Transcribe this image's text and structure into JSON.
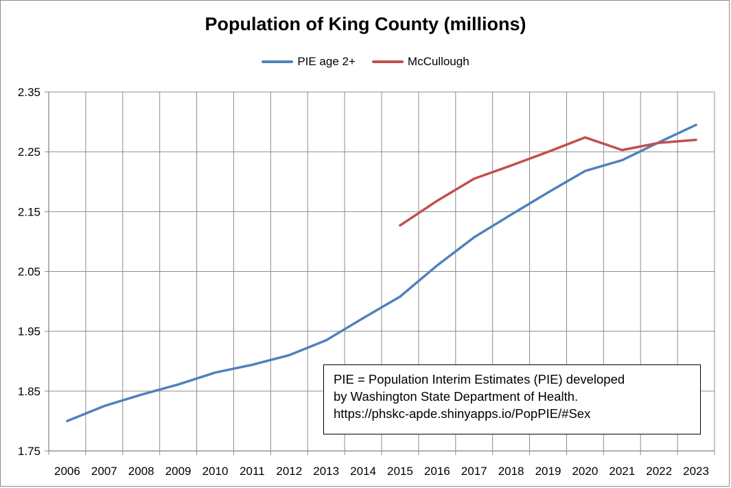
{
  "chart_data": {
    "type": "line",
    "title": "Population of King County (millions)",
    "xlabel": "",
    "ylabel": "",
    "x": [
      2006,
      2007,
      2008,
      2009,
      2010,
      2011,
      2012,
      2013,
      2014,
      2015,
      2016,
      2017,
      2018,
      2019,
      2020,
      2021,
      2022,
      2023
    ],
    "ylim": [
      1.75,
      2.35
    ],
    "yticks": [
      "1.75",
      "1.85",
      "1.95",
      "2.05",
      "2.15",
      "2.25",
      "2.35"
    ],
    "grid": true,
    "legend_position": "top",
    "series": [
      {
        "name": "PIE age 2+",
        "color": "#4f81bd",
        "values": [
          1.8,
          1.825,
          1.844,
          1.861,
          1.881,
          1.894,
          1.91,
          1.935,
          1.972,
          2.008,
          2.06,
          2.107,
          2.145,
          2.182,
          2.218,
          2.236,
          2.266,
          2.295
        ]
      },
      {
        "name": "McCullough",
        "color": "#c0504d",
        "values": [
          null,
          null,
          null,
          null,
          null,
          null,
          null,
          null,
          null,
          2.127,
          2.168,
          2.205,
          2.227,
          2.25,
          2.274,
          2.253,
          2.265,
          2.27
        ]
      }
    ]
  },
  "annotation": {
    "line1": "PIE = Population Interim Estimates (PIE) developed",
    "line2": "by Washington State Department of Health.",
    "line3": "https://phskc-apde.shinyapps.io/PopPIE/#Sex"
  }
}
